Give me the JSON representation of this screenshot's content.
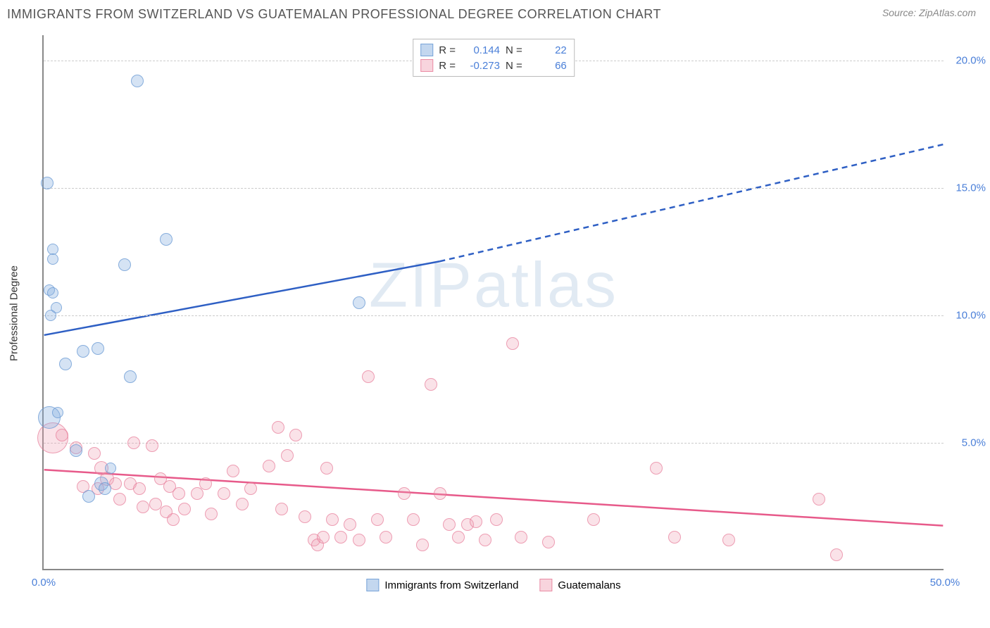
{
  "header": {
    "title": "IMMIGRANTS FROM SWITZERLAND VS GUATEMALAN PROFESSIONAL DEGREE CORRELATION CHART",
    "source": "Source: ZipAtlas.com"
  },
  "watermark": {
    "zip": "ZIP",
    "atlas": "atlas"
  },
  "axes": {
    "y_label": "Professional Degree",
    "x_min": 0,
    "x_max": 50,
    "y_min": 0,
    "y_max": 21,
    "y_ticks": [
      {
        "v": 5,
        "label": "5.0%"
      },
      {
        "v": 10,
        "label": "10.0%"
      },
      {
        "v": 15,
        "label": "15.0%"
      },
      {
        "v": 20,
        "label": "20.0%"
      }
    ],
    "x_ticks": [
      {
        "v": 0,
        "label": "0.0%"
      },
      {
        "v": 50,
        "label": "50.0%"
      }
    ],
    "grid_color": "#cccccc",
    "axis_color": "#888888",
    "tick_color": "#4a7fd8"
  },
  "series": {
    "blue": {
      "name": "Immigrants from Switzerland",
      "fill": "rgba(135,176,224,0.35)",
      "stroke": "rgba(100,150,210,0.7)",
      "line_color": "#2e5fc4",
      "R": "0.144",
      "N": "22",
      "trend": {
        "x1": 0,
        "y1": 9.2,
        "x2_solid": 22,
        "y2_solid": 12.1,
        "x2": 50,
        "y2": 16.7
      },
      "points": [
        {
          "x": 0.2,
          "y": 15.2,
          "r": 9
        },
        {
          "x": 0.5,
          "y": 12.6,
          "r": 8
        },
        {
          "x": 0.5,
          "y": 12.2,
          "r": 8
        },
        {
          "x": 0.3,
          "y": 11.0,
          "r": 8
        },
        {
          "x": 0.5,
          "y": 10.9,
          "r": 8
        },
        {
          "x": 0.7,
          "y": 10.3,
          "r": 8
        },
        {
          "x": 0.4,
          "y": 10.0,
          "r": 8
        },
        {
          "x": 5.2,
          "y": 19.2,
          "r": 9
        },
        {
          "x": 2.2,
          "y": 8.6,
          "r": 9
        },
        {
          "x": 1.2,
          "y": 8.1,
          "r": 9
        },
        {
          "x": 3.0,
          "y": 8.7,
          "r": 9
        },
        {
          "x": 4.5,
          "y": 12.0,
          "r": 9
        },
        {
          "x": 6.8,
          "y": 13.0,
          "r": 9
        },
        {
          "x": 4.8,
          "y": 7.6,
          "r": 9
        },
        {
          "x": 0.3,
          "y": 6.0,
          "r": 16
        },
        {
          "x": 1.8,
          "y": 4.7,
          "r": 9
        },
        {
          "x": 3.2,
          "y": 3.4,
          "r": 10
        },
        {
          "x": 3.4,
          "y": 3.2,
          "r": 9
        },
        {
          "x": 2.5,
          "y": 2.9,
          "r": 9
        },
        {
          "x": 17.5,
          "y": 10.5,
          "r": 9
        },
        {
          "x": 0.8,
          "y": 6.2,
          "r": 8
        },
        {
          "x": 3.7,
          "y": 4.0,
          "r": 8
        }
      ]
    },
    "pink": {
      "name": "Guatemalans",
      "fill": "rgba(240,160,180,0.3)",
      "stroke": "rgba(230,120,150,0.65)",
      "line_color": "#e75a8a",
      "R": "-0.273",
      "N": "66",
      "trend": {
        "x1": 0,
        "y1": 3.9,
        "x2": 50,
        "y2": 1.7
      },
      "points": [
        {
          "x": 0.5,
          "y": 5.2,
          "r": 22
        },
        {
          "x": 1.0,
          "y": 5.3,
          "r": 9
        },
        {
          "x": 1.8,
          "y": 4.8,
          "r": 9
        },
        {
          "x": 2.8,
          "y": 4.6,
          "r": 9
        },
        {
          "x": 2.2,
          "y": 3.3,
          "r": 9
        },
        {
          "x": 3.0,
          "y": 3.2,
          "r": 9
        },
        {
          "x": 3.5,
          "y": 3.6,
          "r": 10
        },
        {
          "x": 3.2,
          "y": 4.0,
          "r": 10
        },
        {
          "x": 4.0,
          "y": 3.4,
          "r": 9
        },
        {
          "x": 4.2,
          "y": 2.8,
          "r": 9
        },
        {
          "x": 4.8,
          "y": 3.4,
          "r": 9
        },
        {
          "x": 5.0,
          "y": 5.0,
          "r": 9
        },
        {
          "x": 5.3,
          "y": 3.2,
          "r": 9
        },
        {
          "x": 5.5,
          "y": 2.5,
          "r": 9
        },
        {
          "x": 6.0,
          "y": 4.9,
          "r": 9
        },
        {
          "x": 6.2,
          "y": 2.6,
          "r": 9
        },
        {
          "x": 6.5,
          "y": 3.6,
          "r": 9
        },
        {
          "x": 6.8,
          "y": 2.3,
          "r": 9
        },
        {
          "x": 7.0,
          "y": 3.3,
          "r": 9
        },
        {
          "x": 7.2,
          "y": 2.0,
          "r": 9
        },
        {
          "x": 7.5,
          "y": 3.0,
          "r": 9
        },
        {
          "x": 7.8,
          "y": 2.4,
          "r": 9
        },
        {
          "x": 8.5,
          "y": 3.0,
          "r": 9
        },
        {
          "x": 9.0,
          "y": 3.4,
          "r": 9
        },
        {
          "x": 9.3,
          "y": 2.2,
          "r": 9
        },
        {
          "x": 10.0,
          "y": 3.0,
          "r": 9
        },
        {
          "x": 10.5,
          "y": 3.9,
          "r": 9
        },
        {
          "x": 11.0,
          "y": 2.6,
          "r": 9
        },
        {
          "x": 11.5,
          "y": 3.2,
          "r": 9
        },
        {
          "x": 12.5,
          "y": 4.1,
          "r": 9
        },
        {
          "x": 13.0,
          "y": 5.6,
          "r": 9
        },
        {
          "x": 13.2,
          "y": 2.4,
          "r": 9
        },
        {
          "x": 13.5,
          "y": 4.5,
          "r": 9
        },
        {
          "x": 14.0,
          "y": 5.3,
          "r": 9
        },
        {
          "x": 14.5,
          "y": 2.1,
          "r": 9
        },
        {
          "x": 15.0,
          "y": 1.2,
          "r": 9
        },
        {
          "x": 15.2,
          "y": 1.0,
          "r": 9
        },
        {
          "x": 15.5,
          "y": 1.3,
          "r": 9
        },
        {
          "x": 15.7,
          "y": 4.0,
          "r": 9
        },
        {
          "x": 16.0,
          "y": 2.0,
          "r": 9
        },
        {
          "x": 16.5,
          "y": 1.3,
          "r": 9
        },
        {
          "x": 17.0,
          "y": 1.8,
          "r": 9
        },
        {
          "x": 17.5,
          "y": 1.2,
          "r": 9
        },
        {
          "x": 18.0,
          "y": 7.6,
          "r": 9
        },
        {
          "x": 18.5,
          "y": 2.0,
          "r": 9
        },
        {
          "x": 19.0,
          "y": 1.3,
          "r": 9
        },
        {
          "x": 20.0,
          "y": 3.0,
          "r": 9
        },
        {
          "x": 20.5,
          "y": 2.0,
          "r": 9
        },
        {
          "x": 21.0,
          "y": 1.0,
          "r": 9
        },
        {
          "x": 21.5,
          "y": 7.3,
          "r": 9
        },
        {
          "x": 22.0,
          "y": 3.0,
          "r": 9
        },
        {
          "x": 22.5,
          "y": 1.8,
          "r": 9
        },
        {
          "x": 23.0,
          "y": 1.3,
          "r": 9
        },
        {
          "x": 23.5,
          "y": 1.8,
          "r": 9
        },
        {
          "x": 24.0,
          "y": 1.9,
          "r": 9
        },
        {
          "x": 24.5,
          "y": 1.2,
          "r": 9
        },
        {
          "x": 25.1,
          "y": 2.0,
          "r": 9
        },
        {
          "x": 26.0,
          "y": 8.9,
          "r": 9
        },
        {
          "x": 26.5,
          "y": 1.3,
          "r": 9
        },
        {
          "x": 28.0,
          "y": 1.1,
          "r": 9
        },
        {
          "x": 30.5,
          "y": 2.0,
          "r": 9
        },
        {
          "x": 34.0,
          "y": 4.0,
          "r": 9
        },
        {
          "x": 35.0,
          "y": 1.3,
          "r": 9
        },
        {
          "x": 38.0,
          "y": 1.2,
          "r": 9
        },
        {
          "x": 43.0,
          "y": 2.8,
          "r": 9
        },
        {
          "x": 44.0,
          "y": 0.6,
          "r": 9
        }
      ]
    }
  },
  "legend_top": {
    "r_label": "R =",
    "n_label": "N ="
  },
  "bottom_legend": {
    "items": [
      {
        "color": "blue",
        "label": "Immigrants from Switzerland"
      },
      {
        "color": "pink",
        "label": "Guatemalans"
      }
    ]
  }
}
